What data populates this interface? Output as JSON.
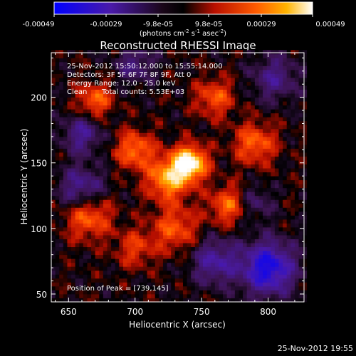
{
  "colorbar": {
    "ticks": [
      "-0.00049",
      "-0.00029",
      "-9.8e-05",
      "9.8e-05",
      "0.00029",
      "0.00049"
    ],
    "unit_label": "(photons cm",
    "unit_sup1": "-2",
    "unit_mid": " s",
    "unit_sup2": "-1",
    "unit_mid2": " asec",
    "unit_sup3": "-2",
    "unit_end": ")"
  },
  "chart_data": {
    "type": "heatmap",
    "title": "Reconstructed RHESSI Image",
    "xlabel": "Heliocentric X (arcsec)",
    "ylabel": "Heliocentric Y (arcsec)",
    "xlim": [
      637,
      827
    ],
    "ylim": [
      44,
      234
    ],
    "x_ticks": [
      650,
      700,
      750,
      800
    ],
    "y_ticks": [
      50,
      100,
      150,
      200
    ],
    "value_range": [
      -0.00049,
      0.00049
    ],
    "colormap": [
      "#0000ff",
      "#5a1e9e",
      "#000000",
      "#c81400",
      "#ff6400",
      "#ffc800",
      "#ffffff"
    ],
    "peak": [
      739,
      145
    ],
    "sources": [
      {
        "x": 741,
        "y": 150,
        "amp": 1.0,
        "sigma": 9
      },
      {
        "x": 725,
        "y": 138,
        "amp": 0.7,
        "sigma": 11
      },
      {
        "x": 700,
        "y": 160,
        "amp": 0.55,
        "sigma": 10
      },
      {
        "x": 670,
        "y": 198,
        "amp": 0.5,
        "sigma": 9
      },
      {
        "x": 665,
        "y": 110,
        "amp": 0.55,
        "sigma": 12
      },
      {
        "x": 760,
        "y": 200,
        "amp": 0.45,
        "sigma": 10
      },
      {
        "x": 790,
        "y": 165,
        "amp": 0.5,
        "sigma": 11
      },
      {
        "x": 770,
        "y": 118,
        "amp": 0.5,
        "sigma": 10
      },
      {
        "x": 730,
        "y": 100,
        "amp": 0.45,
        "sigma": 12
      },
      {
        "x": 700,
        "y": 85,
        "amp": 0.35,
        "sigma": 10
      },
      {
        "x": 660,
        "y": 130,
        "amp": -0.5,
        "sigma": 12
      },
      {
        "x": 660,
        "y": 172,
        "amp": -0.45,
        "sigma": 10
      },
      {
        "x": 800,
        "y": 70,
        "amp": -0.85,
        "sigma": 14
      },
      {
        "x": 760,
        "y": 75,
        "amp": -0.5,
        "sigma": 12
      },
      {
        "x": 805,
        "y": 215,
        "amp": -0.4,
        "sigma": 12
      },
      {
        "x": 700,
        "y": 225,
        "amp": -0.35,
        "sigma": 10
      },
      {
        "x": 790,
        "y": 120,
        "amp": -0.3,
        "sigma": 9
      }
    ]
  },
  "annotations": {
    "time_range": "25-Nov-2012 15:50:12.000 to 15:55:14.000",
    "detectors": "Detectors: 3F 5F 6F 7F 8F 9F, Att 0",
    "energy": "Energy Range: 12.0 - 25.0 keV",
    "clean_label": "Clean",
    "total_counts": "Total counts: 5.53E+03",
    "peak_text": "Position of Peak = [739,145]"
  },
  "footer": {
    "timestamp": "25-Nov-2012 19:55"
  }
}
